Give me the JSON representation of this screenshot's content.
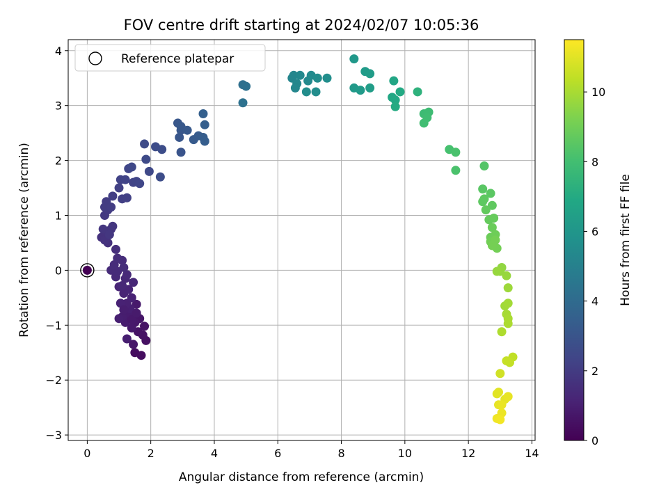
{
  "chart_data": {
    "type": "scatter",
    "title": "FOV centre drift starting at 2024/02/07 10:05:36",
    "xlabel": "Angular distance from reference (arcmin)",
    "ylabel": "Rotation from reference (arcmin)",
    "xlim": [
      -0.6,
      14.1
    ],
    "ylim": [
      -3.1,
      4.2
    ],
    "xticks": [
      0,
      2,
      4,
      6,
      8,
      10,
      12,
      14
    ],
    "yticks": [
      -3,
      -2,
      -1,
      0,
      1,
      2,
      3,
      4
    ],
    "grid": true,
    "legend": {
      "placement": "top-left",
      "entries": [
        "Reference platepar"
      ]
    },
    "reference_point": {
      "x": 0,
      "y": 0
    },
    "colorbar": {
      "label": "Hours from first FF file",
      "colormap": "viridis",
      "range": [
        0,
        11.5
      ],
      "ticks": [
        0,
        2,
        4,
        6,
        8,
        10
      ]
    },
    "points": [
      {
        "x": 0.0,
        "y": 0.0,
        "t": 0.0
      },
      {
        "x": 1.5,
        "y": -1.5,
        "t": 0.4
      },
      {
        "x": 1.7,
        "y": -1.55,
        "t": 0.4
      },
      {
        "x": 1.85,
        "y": -1.28,
        "t": 0.5
      },
      {
        "x": 1.75,
        "y": -1.18,
        "t": 0.55
      },
      {
        "x": 1.8,
        "y": -1.02,
        "t": 0.6
      },
      {
        "x": 1.6,
        "y": -1.12,
        "t": 0.6
      },
      {
        "x": 1.65,
        "y": -0.88,
        "t": 0.7
      },
      {
        "x": 1.5,
        "y": -0.95,
        "t": 0.75
      },
      {
        "x": 1.55,
        "y": -0.62,
        "t": 0.8
      },
      {
        "x": 1.4,
        "y": -1.05,
        "t": 0.8
      },
      {
        "x": 1.3,
        "y": -0.82,
        "t": 0.9
      },
      {
        "x": 1.2,
        "y": -0.95,
        "t": 0.9
      },
      {
        "x": 1.1,
        "y": -0.85,
        "t": 0.95
      },
      {
        "x": 1.0,
        "y": -0.88,
        "t": 1.0
      },
      {
        "x": 1.35,
        "y": -0.7,
        "t": 1.0
      },
      {
        "x": 1.25,
        "y": -0.6,
        "t": 1.05
      },
      {
        "x": 1.05,
        "y": -0.6,
        "t": 1.1
      },
      {
        "x": 1.4,
        "y": -0.5,
        "t": 1.1
      },
      {
        "x": 1.15,
        "y": -0.42,
        "t": 1.15
      },
      {
        "x": 1.3,
        "y": -0.35,
        "t": 1.2
      },
      {
        "x": 1.0,
        "y": -0.3,
        "t": 1.2
      },
      {
        "x": 1.45,
        "y": -0.22,
        "t": 1.25
      },
      {
        "x": 1.2,
        "y": -0.15,
        "t": 1.3
      },
      {
        "x": 1.1,
        "y": -0.28,
        "t": 1.3
      },
      {
        "x": 0.9,
        "y": -0.12,
        "t": 1.35
      },
      {
        "x": 1.25,
        "y": -0.08,
        "t": 1.35
      },
      {
        "x": 0.75,
        "y": 0.0,
        "t": 1.4
      },
      {
        "x": 0.95,
        "y": -0.02,
        "t": 1.4
      },
      {
        "x": 0.85,
        "y": 0.1,
        "t": 1.45
      },
      {
        "x": 1.1,
        "y": 0.18,
        "t": 1.45
      },
      {
        "x": 1.15,
        "y": 0.05,
        "t": 1.5
      },
      {
        "x": 0.95,
        "y": 0.22,
        "t": 1.5
      },
      {
        "x": 0.9,
        "y": 0.38,
        "t": 1.55
      },
      {
        "x": 1.25,
        "y": -1.25,
        "t": 1.0
      },
      {
        "x": 1.45,
        "y": -1.35,
        "t": 0.7
      },
      {
        "x": 1.4,
        "y": -0.9,
        "t": 0.8
      },
      {
        "x": 1.55,
        "y": -0.78,
        "t": 0.85
      },
      {
        "x": 1.15,
        "y": -0.72,
        "t": 0.95
      },
      {
        "x": 0.65,
        "y": 0.5,
        "t": 1.6
      },
      {
        "x": 0.45,
        "y": 0.6,
        "t": 1.65
      },
      {
        "x": 0.55,
        "y": 0.55,
        "t": 1.7
      },
      {
        "x": 0.6,
        "y": 0.7,
        "t": 1.7
      },
      {
        "x": 0.75,
        "y": 0.75,
        "t": 1.75
      },
      {
        "x": 0.8,
        "y": 0.8,
        "t": 1.8
      },
      {
        "x": 0.5,
        "y": 0.75,
        "t": 1.8
      },
      {
        "x": 0.7,
        "y": 0.65,
        "t": 1.85
      },
      {
        "x": 0.55,
        "y": 1.0,
        "t": 1.9
      },
      {
        "x": 0.65,
        "y": 1.1,
        "t": 1.95
      },
      {
        "x": 0.55,
        "y": 1.15,
        "t": 2.0
      },
      {
        "x": 0.6,
        "y": 1.25,
        "t": 2.0
      },
      {
        "x": 0.75,
        "y": 1.15,
        "t": 2.05
      },
      {
        "x": 0.8,
        "y": 1.35,
        "t": 2.1
      },
      {
        "x": 1.1,
        "y": 1.3,
        "t": 2.15
      },
      {
        "x": 1.25,
        "y": 1.32,
        "t": 2.2
      },
      {
        "x": 1.0,
        "y": 1.5,
        "t": 2.2
      },
      {
        "x": 1.05,
        "y": 1.65,
        "t": 2.25
      },
      {
        "x": 1.2,
        "y": 1.65,
        "t": 2.3
      },
      {
        "x": 1.45,
        "y": 1.6,
        "t": 2.3
      },
      {
        "x": 1.55,
        "y": 1.62,
        "t": 2.35
      },
      {
        "x": 1.65,
        "y": 1.58,
        "t": 2.4
      },
      {
        "x": 1.3,
        "y": 1.85,
        "t": 2.4
      },
      {
        "x": 1.4,
        "y": 1.88,
        "t": 2.45
      },
      {
        "x": 1.95,
        "y": 1.8,
        "t": 2.5
      },
      {
        "x": 1.85,
        "y": 2.02,
        "t": 2.55
      },
      {
        "x": 1.8,
        "y": 2.3,
        "t": 2.6
      },
      {
        "x": 2.15,
        "y": 2.25,
        "t": 2.65
      },
      {
        "x": 2.35,
        "y": 2.2,
        "t": 2.7
      },
      {
        "x": 2.3,
        "y": 1.7,
        "t": 2.7
      },
      {
        "x": 2.95,
        "y": 2.15,
        "t": 3.0
      },
      {
        "x": 2.9,
        "y": 2.42,
        "t": 3.05
      },
      {
        "x": 2.95,
        "y": 2.55,
        "t": 3.1
      },
      {
        "x": 2.85,
        "y": 2.68,
        "t": 3.1
      },
      {
        "x": 2.95,
        "y": 2.62,
        "t": 3.15
      },
      {
        "x": 3.15,
        "y": 2.55,
        "t": 3.2
      },
      {
        "x": 3.35,
        "y": 2.38,
        "t": 3.25
      },
      {
        "x": 3.5,
        "y": 2.45,
        "t": 3.3
      },
      {
        "x": 3.65,
        "y": 2.42,
        "t": 3.35
      },
      {
        "x": 3.7,
        "y": 2.35,
        "t": 3.4
      },
      {
        "x": 3.7,
        "y": 2.65,
        "t": 3.45
      },
      {
        "x": 3.65,
        "y": 2.85,
        "t": 3.5
      },
      {
        "x": 4.9,
        "y": 3.38,
        "t": 4.2
      },
      {
        "x": 5.0,
        "y": 3.35,
        "t": 4.25
      },
      {
        "x": 4.9,
        "y": 3.05,
        "t": 4.3
      },
      {
        "x": 6.45,
        "y": 3.5,
        "t": 5.2
      },
      {
        "x": 6.5,
        "y": 3.55,
        "t": 5.25
      },
      {
        "x": 6.6,
        "y": 3.4,
        "t": 5.3
      },
      {
        "x": 6.55,
        "y": 3.32,
        "t": 5.3
      },
      {
        "x": 6.7,
        "y": 3.55,
        "t": 5.35
      },
      {
        "x": 6.95,
        "y": 3.45,
        "t": 5.4
      },
      {
        "x": 7.05,
        "y": 3.55,
        "t": 5.45
      },
      {
        "x": 7.25,
        "y": 3.5,
        "t": 5.5
      },
      {
        "x": 7.2,
        "y": 3.25,
        "t": 5.55
      },
      {
        "x": 6.9,
        "y": 3.25,
        "t": 5.55
      },
      {
        "x": 7.55,
        "y": 3.5,
        "t": 5.6
      },
      {
        "x": 8.4,
        "y": 3.85,
        "t": 6.1
      },
      {
        "x": 8.4,
        "y": 3.32,
        "t": 6.15
      },
      {
        "x": 8.6,
        "y": 3.28,
        "t": 6.2
      },
      {
        "x": 8.75,
        "y": 3.62,
        "t": 6.25
      },
      {
        "x": 8.9,
        "y": 3.58,
        "t": 6.3
      },
      {
        "x": 8.9,
        "y": 3.32,
        "t": 6.35
      },
      {
        "x": 9.65,
        "y": 3.45,
        "t": 6.8
      },
      {
        "x": 9.6,
        "y": 3.15,
        "t": 6.85
      },
      {
        "x": 9.7,
        "y": 3.1,
        "t": 6.9
      },
      {
        "x": 9.85,
        "y": 3.25,
        "t": 6.95
      },
      {
        "x": 9.7,
        "y": 2.98,
        "t": 7.0
      },
      {
        "x": 10.4,
        "y": 3.25,
        "t": 7.35
      },
      {
        "x": 10.6,
        "y": 2.85,
        "t": 7.8
      },
      {
        "x": 10.75,
        "y": 2.88,
        "t": 7.85
      },
      {
        "x": 10.7,
        "y": 2.78,
        "t": 7.9
      },
      {
        "x": 10.6,
        "y": 2.68,
        "t": 7.95
      },
      {
        "x": 11.4,
        "y": 2.2,
        "t": 8.1
      },
      {
        "x": 11.6,
        "y": 2.15,
        "t": 8.15
      },
      {
        "x": 11.6,
        "y": 1.82,
        "t": 8.2
      },
      {
        "x": 12.5,
        "y": 1.9,
        "t": 8.4
      },
      {
        "x": 12.45,
        "y": 1.48,
        "t": 8.5
      },
      {
        "x": 12.7,
        "y": 1.4,
        "t": 8.55
      },
      {
        "x": 12.5,
        "y": 1.3,
        "t": 8.6
      },
      {
        "x": 12.45,
        "y": 1.25,
        "t": 8.6
      },
      {
        "x": 12.75,
        "y": 1.18,
        "t": 8.65
      },
      {
        "x": 12.55,
        "y": 1.1,
        "t": 8.7
      },
      {
        "x": 12.65,
        "y": 0.92,
        "t": 8.75
      },
      {
        "x": 12.8,
        "y": 0.95,
        "t": 8.8
      },
      {
        "x": 12.75,
        "y": 0.78,
        "t": 8.85
      },
      {
        "x": 12.7,
        "y": 0.6,
        "t": 8.9
      },
      {
        "x": 12.85,
        "y": 0.65,
        "t": 8.95
      },
      {
        "x": 12.7,
        "y": 0.52,
        "t": 9.0
      },
      {
        "x": 12.9,
        "y": 0.4,
        "t": 9.05
      },
      {
        "x": 12.75,
        "y": 0.45,
        "t": 9.1
      },
      {
        "x": 12.85,
        "y": 0.55,
        "t": 9.1
      },
      {
        "x": 13.05,
        "y": 0.05,
        "t": 9.6
      },
      {
        "x": 13.0,
        "y": -0.02,
        "t": 9.65
      },
      {
        "x": 12.9,
        "y": -0.02,
        "t": 9.7
      },
      {
        "x": 13.2,
        "y": -0.1,
        "t": 9.7
      },
      {
        "x": 13.25,
        "y": -0.32,
        "t": 9.8
      },
      {
        "x": 13.15,
        "y": -0.65,
        "t": 9.85
      },
      {
        "x": 13.25,
        "y": -0.6,
        "t": 9.9
      },
      {
        "x": 13.2,
        "y": -0.8,
        "t": 9.95
      },
      {
        "x": 13.25,
        "y": -0.88,
        "t": 10.0
      },
      {
        "x": 13.25,
        "y": -0.97,
        "t": 10.05
      },
      {
        "x": 13.05,
        "y": -1.12,
        "t": 10.1
      },
      {
        "x": 13.4,
        "y": -1.58,
        "t": 10.4
      },
      {
        "x": 13.3,
        "y": -1.68,
        "t": 10.45
      },
      {
        "x": 13.2,
        "y": -1.65,
        "t": 10.5
      },
      {
        "x": 13.0,
        "y": -1.88,
        "t": 10.7
      },
      {
        "x": 12.95,
        "y": -2.22,
        "t": 11.0
      },
      {
        "x": 12.9,
        "y": -2.25,
        "t": 11.0
      },
      {
        "x": 13.15,
        "y": -2.35,
        "t": 11.05
      },
      {
        "x": 13.25,
        "y": -2.3,
        "t": 11.1
      },
      {
        "x": 12.95,
        "y": -2.45,
        "t": 11.1
      },
      {
        "x": 13.05,
        "y": -2.45,
        "t": 11.15
      },
      {
        "x": 13.05,
        "y": -2.6,
        "t": 11.2
      },
      {
        "x": 12.9,
        "y": -2.7,
        "t": 11.25
      },
      {
        "x": 13.0,
        "y": -2.72,
        "t": 11.3
      }
    ]
  }
}
